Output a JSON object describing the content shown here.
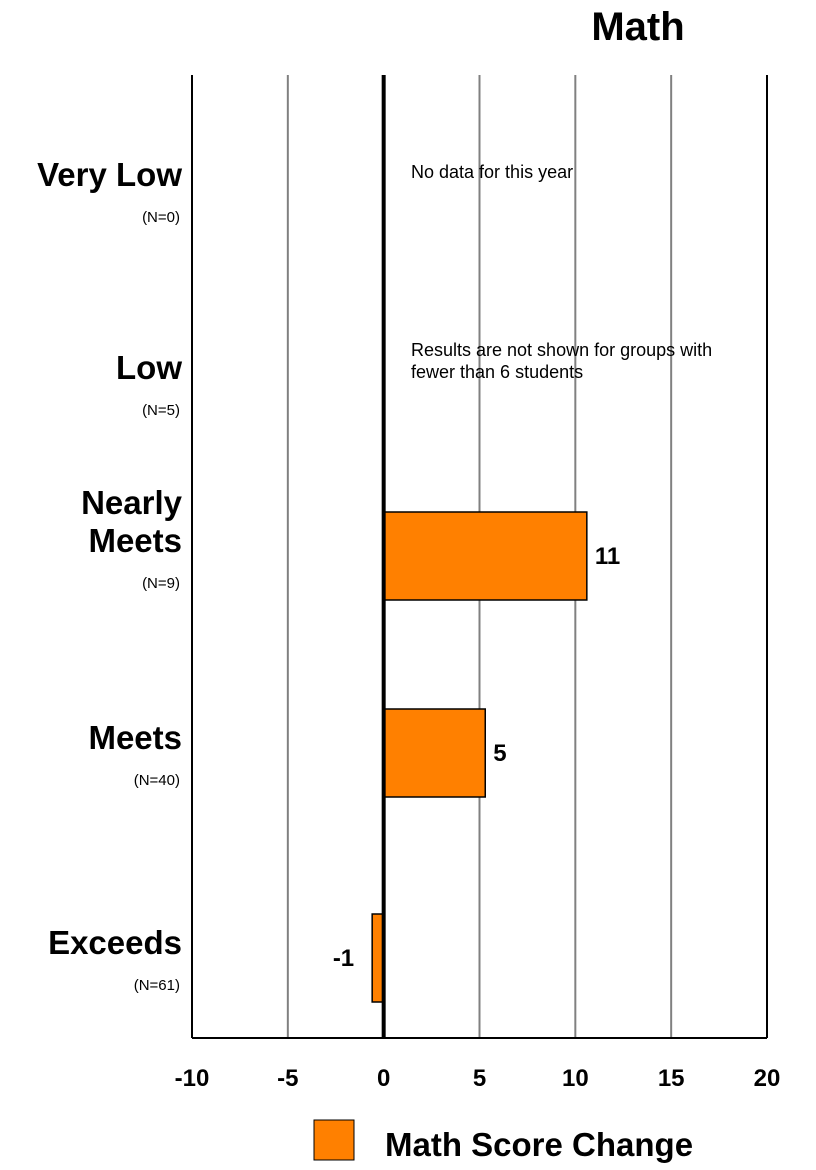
{
  "chart_data": {
    "type": "bar",
    "orientation": "horizontal",
    "title": "Math",
    "xlabel": "",
    "ylabel": "",
    "xlim": [
      -10,
      20
    ],
    "xticks": [
      -10,
      -5,
      0,
      5,
      10,
      15,
      20
    ],
    "xtick_labels": [
      "-10",
      "-5",
      "0",
      "5",
      "10",
      "15",
      "20"
    ],
    "grid": true,
    "categories": [
      {
        "label_lines": [
          "Very Low"
        ],
        "count_label": "(N=0)"
      },
      {
        "label_lines": [
          "Low"
        ],
        "count_label": "(N=5)"
      },
      {
        "label_lines": [
          "Nearly",
          "Meets"
        ],
        "count_label": "(N=9)"
      },
      {
        "label_lines": [
          "Meets"
        ],
        "count_label": "(N=40)"
      },
      {
        "label_lines": [
          "Exceeds"
        ],
        "count_label": "(N=61)"
      }
    ],
    "series": [
      {
        "name": "Math Score Change",
        "color": "#FF8000",
        "values": [
          null,
          null,
          10.6,
          5.3,
          -0.6
        ],
        "data_labels": [
          "",
          "",
          "11",
          "5",
          "-1"
        ]
      }
    ],
    "annotations": [
      {
        "category_index": 0,
        "lines": [
          "No data for this year"
        ]
      },
      {
        "category_index": 1,
        "lines": [
          "Results are not shown for groups with",
          "fewer than 6 students"
        ]
      }
    ],
    "legend": {
      "placement": "bottom",
      "label": "Math Score Change",
      "color": "#FF8000"
    }
  }
}
